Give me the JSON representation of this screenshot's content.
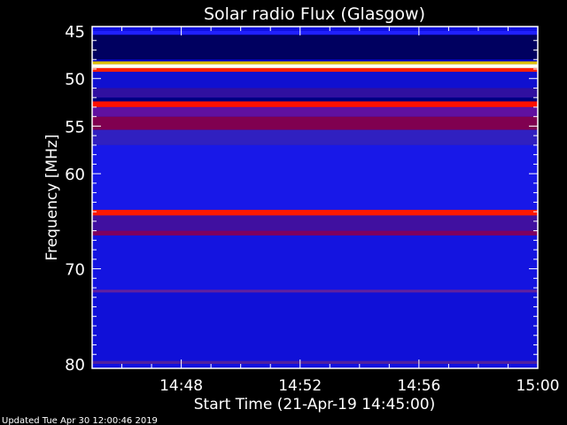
{
  "chart_data": {
    "type": "heatmap",
    "title": "Solar radio Flux (Glasgow)",
    "xlabel": "Start Time (21-Apr-19 14:45:00)",
    "ylabel": "Frequency [MHz]",
    "x_range": [
      "14:45",
      "15:00"
    ],
    "x_ticks": [
      "14:48",
      "14:52",
      "14:56",
      "15:00"
    ],
    "ylim": [
      45,
      80
    ],
    "y_ticks": [
      45,
      50,
      55,
      60,
      70,
      80
    ],
    "y_inverted": true,
    "background_color": "#1010e0",
    "bands": [
      {
        "from": 45.0,
        "to": 45.4,
        "color": "#2020ff"
      },
      {
        "from": 45.4,
        "to": 48.0,
        "color": "#000060"
      },
      {
        "from": 48.0,
        "to": 48.2,
        "color": "#0000c0"
      },
      {
        "from": 48.2,
        "to": 48.5,
        "color": "#e0c000"
      },
      {
        "from": 48.5,
        "to": 48.9,
        "color": "#fffff0"
      },
      {
        "from": 48.9,
        "to": 49.3,
        "color": "#ff2000"
      },
      {
        "from": 49.3,
        "to": 51.0,
        "color": "#1010d0"
      },
      {
        "from": 51.0,
        "to": 52.0,
        "color": "#3010a0"
      },
      {
        "from": 52.0,
        "to": 52.4,
        "color": "#000080"
      },
      {
        "from": 52.4,
        "to": 53.0,
        "color": "#ff1000"
      },
      {
        "from": 53.0,
        "to": 54.0,
        "color": "#6010a0"
      },
      {
        "from": 54.0,
        "to": 55.4,
        "color": "#800050"
      },
      {
        "from": 55.4,
        "to": 57.0,
        "color": "#3020c0"
      },
      {
        "from": 57.0,
        "to": 63.8,
        "color": "#1818e8"
      },
      {
        "from": 63.8,
        "to": 64.4,
        "color": "#ff1800"
      },
      {
        "from": 64.4,
        "to": 66.0,
        "color": "#4010a0"
      },
      {
        "from": 66.0,
        "to": 66.5,
        "color": "#800060"
      },
      {
        "from": 66.5,
        "to": 72.2,
        "color": "#1414e0"
      },
      {
        "from": 72.2,
        "to": 72.5,
        "color": "#6020a0"
      },
      {
        "from": 72.5,
        "to": 79.7,
        "color": "#1010d8"
      },
      {
        "from": 79.7,
        "to": 80.0,
        "color": "#5020a0"
      }
    ]
  },
  "footer": {
    "updated": "Updated Tue Apr 30 12:00:46 2019"
  }
}
